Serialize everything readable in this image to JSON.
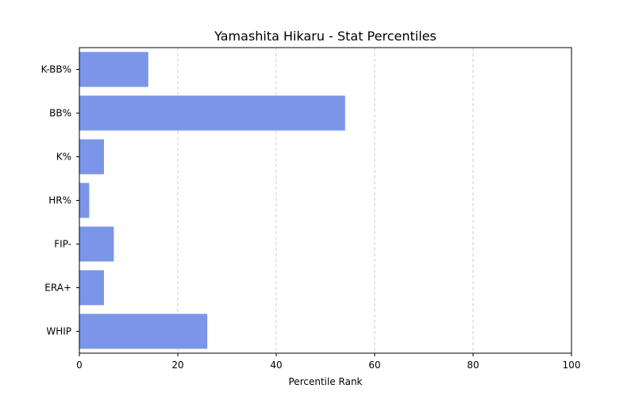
{
  "chart_data": {
    "type": "bar",
    "orientation": "horizontal",
    "title": "Yamashita Hikaru - Stat Percentiles",
    "xlabel": "Percentile Rank",
    "ylabel": "",
    "categories": [
      "WHIP",
      "ERA+",
      "FIP-",
      "HR%",
      "K%",
      "BB%",
      "K-BB%"
    ],
    "values": [
      26,
      5,
      7,
      2,
      5,
      54,
      14
    ],
    "xlim": [
      0,
      100
    ],
    "xticks": [
      0,
      20,
      40,
      60,
      80,
      100
    ],
    "xtick_labels": [
      "0",
      "20",
      "40",
      "60",
      "80",
      "100"
    ],
    "grid": "x-axis, dashed",
    "legend": "none",
    "colors": {
      "bar": "#7b96e8",
      "grid": "#cccccc",
      "axes": "#000000"
    }
  }
}
